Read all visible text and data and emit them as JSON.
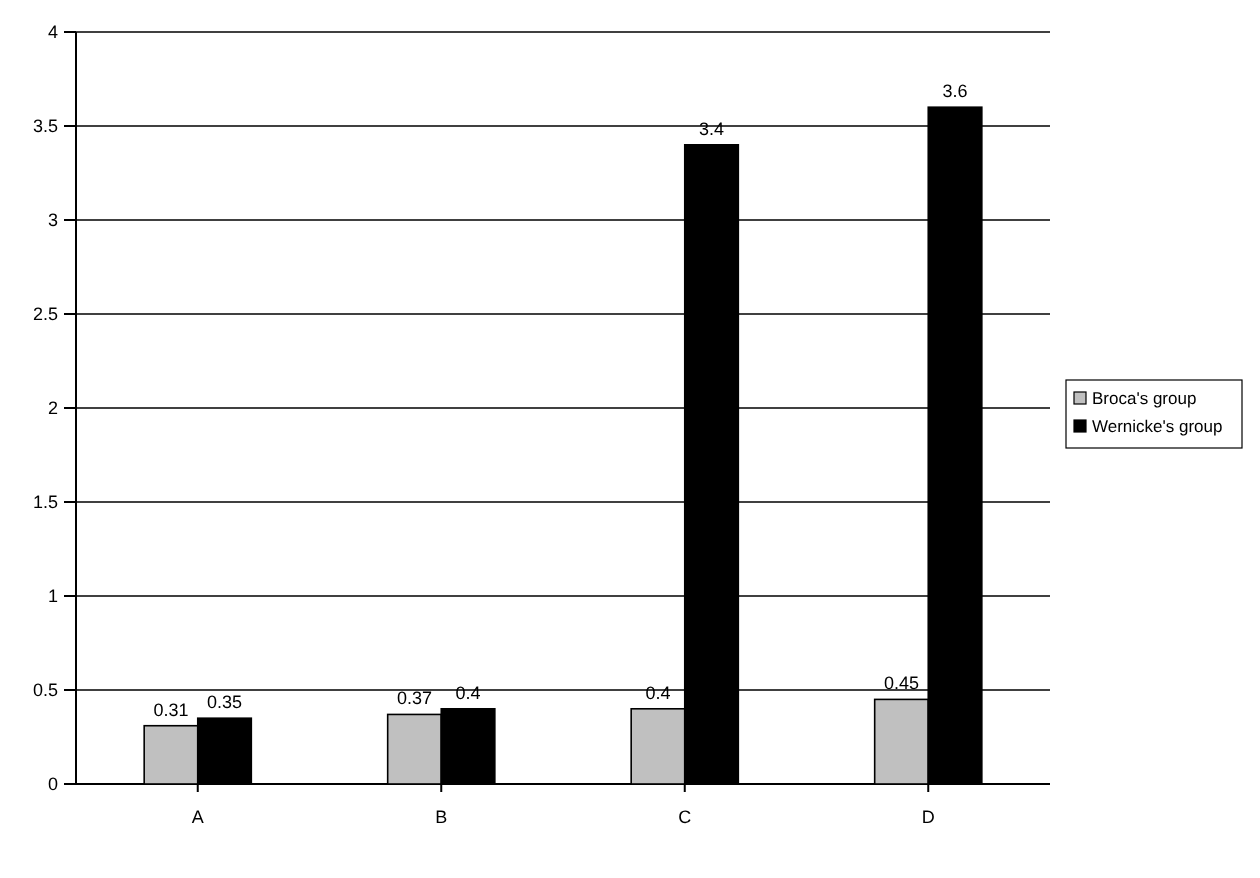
{
  "chart_data": {
    "type": "bar",
    "categories": [
      "A",
      "B",
      "C",
      "D"
    ],
    "series": [
      {
        "name": "Broca's group",
        "color": "#c0c0c0",
        "values": [
          0.31,
          0.37,
          0.4,
          0.45
        ]
      },
      {
        "name": "Wernicke's group",
        "color": "#000000",
        "values": [
          0.35,
          0.4,
          3.4,
          3.6
        ]
      }
    ],
    "ylim": [
      0,
      4
    ],
    "yticks": [
      0,
      0.5,
      1,
      1.5,
      2,
      2.5,
      3,
      3.5,
      4
    ],
    "grid": "y",
    "legend": "right",
    "data_labels": true
  }
}
